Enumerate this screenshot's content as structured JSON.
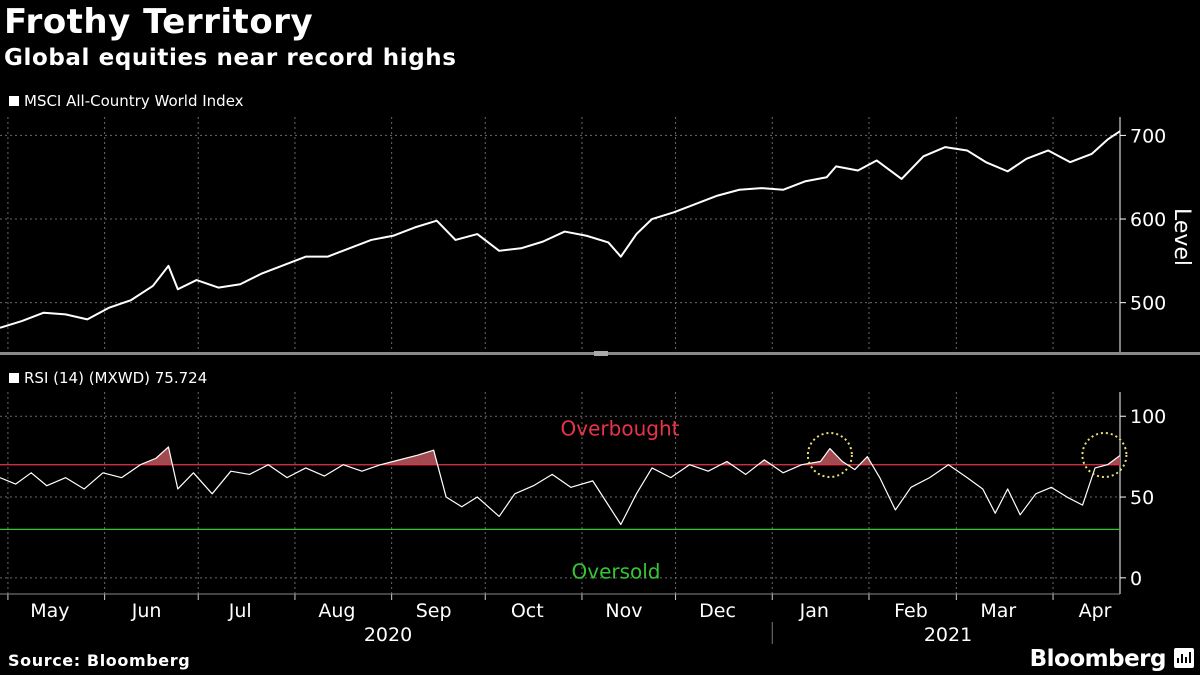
{
  "header": {
    "title": "Frothy Territory",
    "subtitle": "Global equities near record highs"
  },
  "footer": {
    "source": "Source: Bloomberg",
    "brand": "Bloomberg"
  },
  "chart_data": [
    {
      "type": "line",
      "legend": "MSCI All-Country World Index",
      "ylabel": "Level",
      "ylim": [
        441,
        722
      ],
      "yticks": [
        500,
        600,
        700
      ],
      "grid": true,
      "x_range": [
        "2020-04-15",
        "2021-04-09"
      ],
      "series": [
        {
          "name": "MSCI All-Country World Index",
          "color": "#ffffff",
          "points": [
            [
              "2020-04-15",
              470
            ],
            [
              "2020-04-22",
              478
            ],
            [
              "2020-04-29",
              488
            ],
            [
              "2020-05-06",
              486
            ],
            [
              "2020-05-13",
              480
            ],
            [
              "2020-05-20",
              494
            ],
            [
              "2020-05-27",
              503
            ],
            [
              "2020-06-03",
              520
            ],
            [
              "2020-06-08",
              544
            ],
            [
              "2020-06-11",
              516
            ],
            [
              "2020-06-17",
              527
            ],
            [
              "2020-06-24",
              518
            ],
            [
              "2020-07-01",
              522
            ],
            [
              "2020-07-08",
              535
            ],
            [
              "2020-07-15",
              545
            ],
            [
              "2020-07-22",
              555
            ],
            [
              "2020-07-29",
              555
            ],
            [
              "2020-08-05",
              565
            ],
            [
              "2020-08-12",
              575
            ],
            [
              "2020-08-19",
              580
            ],
            [
              "2020-08-26",
              590
            ],
            [
              "2020-09-02",
              598
            ],
            [
              "2020-09-08",
              575
            ],
            [
              "2020-09-15",
              582
            ],
            [
              "2020-09-22",
              562
            ],
            [
              "2020-09-29",
              565
            ],
            [
              "2020-10-06",
              573
            ],
            [
              "2020-10-13",
              585
            ],
            [
              "2020-10-20",
              580
            ],
            [
              "2020-10-27",
              572
            ],
            [
              "2020-10-31",
              555
            ],
            [
              "2020-11-05",
              582
            ],
            [
              "2020-11-10",
              600
            ],
            [
              "2020-11-17",
              608
            ],
            [
              "2020-11-24",
              618
            ],
            [
              "2020-12-01",
              628
            ],
            [
              "2020-12-08",
              635
            ],
            [
              "2020-12-15",
              637
            ],
            [
              "2020-12-22",
              635
            ],
            [
              "2020-12-29",
              645
            ],
            [
              "2021-01-05",
              650
            ],
            [
              "2021-01-08",
              663
            ],
            [
              "2021-01-15",
              658
            ],
            [
              "2021-01-21",
              670
            ],
            [
              "2021-01-29",
              648
            ],
            [
              "2021-02-05",
              675
            ],
            [
              "2021-02-12",
              686
            ],
            [
              "2021-02-19",
              682
            ],
            [
              "2021-02-25",
              668
            ],
            [
              "2021-03-04",
              657
            ],
            [
              "2021-03-10",
              672
            ],
            [
              "2021-03-17",
              682
            ],
            [
              "2021-03-24",
              668
            ],
            [
              "2021-03-31",
              678
            ],
            [
              "2021-04-05",
              695
            ],
            [
              "2021-04-09",
              705
            ]
          ]
        }
      ]
    },
    {
      "type": "line",
      "legend": "RSI (14) (MXWD) 75.724",
      "ylim": [
        -10,
        115
      ],
      "yticks": [
        0,
        50,
        100
      ],
      "reference_lines": [
        {
          "label": "Overbought",
          "value": 70,
          "color": "#e8334a"
        },
        {
          "label": "Oversold",
          "value": 30,
          "color": "#35c435"
        }
      ],
      "highlight_circles": [
        "2021-01-06",
        "2021-04-04"
      ],
      "highlight_color": "#e8e070",
      "overbought_fill": "#a34a50",
      "series": [
        {
          "name": "RSI (14) (MXWD)",
          "color": "#ffffff",
          "last_value": 75.724,
          "points": [
            [
              "2020-04-15",
              62
            ],
            [
              "2020-04-20",
              58
            ],
            [
              "2020-04-25",
              65
            ],
            [
              "2020-04-30",
              57
            ],
            [
              "2020-05-06",
              62
            ],
            [
              "2020-05-12",
              55
            ],
            [
              "2020-05-18",
              65
            ],
            [
              "2020-05-24",
              62
            ],
            [
              "2020-05-30",
              70
            ],
            [
              "2020-06-04",
              74
            ],
            [
              "2020-06-08",
              81
            ],
            [
              "2020-06-11",
              55
            ],
            [
              "2020-06-16",
              65
            ],
            [
              "2020-06-22",
              52
            ],
            [
              "2020-06-28",
              66
            ],
            [
              "2020-07-04",
              64
            ],
            [
              "2020-07-10",
              70
            ],
            [
              "2020-07-16",
              62
            ],
            [
              "2020-07-22",
              68
            ],
            [
              "2020-07-28",
              63
            ],
            [
              "2020-08-03",
              70
            ],
            [
              "2020-08-09",
              66
            ],
            [
              "2020-08-15",
              70
            ],
            [
              "2020-08-21",
              73
            ],
            [
              "2020-08-27",
              76
            ],
            [
              "2020-09-01",
              79
            ],
            [
              "2020-09-05",
              50
            ],
            [
              "2020-09-10",
              44
            ],
            [
              "2020-09-15",
              50
            ],
            [
              "2020-09-22",
              38
            ],
            [
              "2020-09-27",
              52
            ],
            [
              "2020-10-03",
              57
            ],
            [
              "2020-10-09",
              64
            ],
            [
              "2020-10-15",
              56
            ],
            [
              "2020-10-22",
              60
            ],
            [
              "2020-10-27",
              45
            ],
            [
              "2020-10-31",
              33
            ],
            [
              "2020-11-05",
              52
            ],
            [
              "2020-11-10",
              68
            ],
            [
              "2020-11-16",
              62
            ],
            [
              "2020-11-22",
              70
            ],
            [
              "2020-11-28",
              66
            ],
            [
              "2020-12-04",
              72
            ],
            [
              "2020-12-10",
              64
            ],
            [
              "2020-12-16",
              73
            ],
            [
              "2020-12-22",
              65
            ],
            [
              "2020-12-28",
              70
            ],
            [
              "2021-01-03",
              72
            ],
            [
              "2021-01-06",
              80
            ],
            [
              "2021-01-10",
              72
            ],
            [
              "2021-01-14",
              67
            ],
            [
              "2021-01-18",
              75
            ],
            [
              "2021-01-22",
              62
            ],
            [
              "2021-01-27",
              42
            ],
            [
              "2021-02-01",
              56
            ],
            [
              "2021-02-07",
              62
            ],
            [
              "2021-02-13",
              70
            ],
            [
              "2021-02-19",
              62
            ],
            [
              "2021-02-24",
              55
            ],
            [
              "2021-02-28",
              40
            ],
            [
              "2021-03-04",
              55
            ],
            [
              "2021-03-08",
              39
            ],
            [
              "2021-03-13",
              52
            ],
            [
              "2021-03-18",
              56
            ],
            [
              "2021-03-23",
              50
            ],
            [
              "2021-03-28",
              45
            ],
            [
              "2021-04-01",
              68
            ],
            [
              "2021-04-05",
              70
            ],
            [
              "2021-04-09",
              75.724
            ]
          ]
        }
      ]
    }
  ],
  "x_axis": {
    "months": [
      {
        "label": "May",
        "date": "2020-05-01"
      },
      {
        "label": "Jun",
        "date": "2020-06-01"
      },
      {
        "label": "Jul",
        "date": "2020-07-01"
      },
      {
        "label": "Aug",
        "date": "2020-08-01"
      },
      {
        "label": "Sep",
        "date": "2020-09-01"
      },
      {
        "label": "Oct",
        "date": "2020-10-01"
      },
      {
        "label": "Nov",
        "date": "2020-11-01"
      },
      {
        "label": "Dec",
        "date": "2020-12-01"
      },
      {
        "label": "Jan",
        "date": "2021-01-01"
      },
      {
        "label": "Feb",
        "date": "2021-02-01"
      },
      {
        "label": "Mar",
        "date": "2021-03-01"
      },
      {
        "label": "Apr",
        "date": "2021-04-01"
      }
    ],
    "years": [
      "2020",
      "2021"
    ]
  }
}
